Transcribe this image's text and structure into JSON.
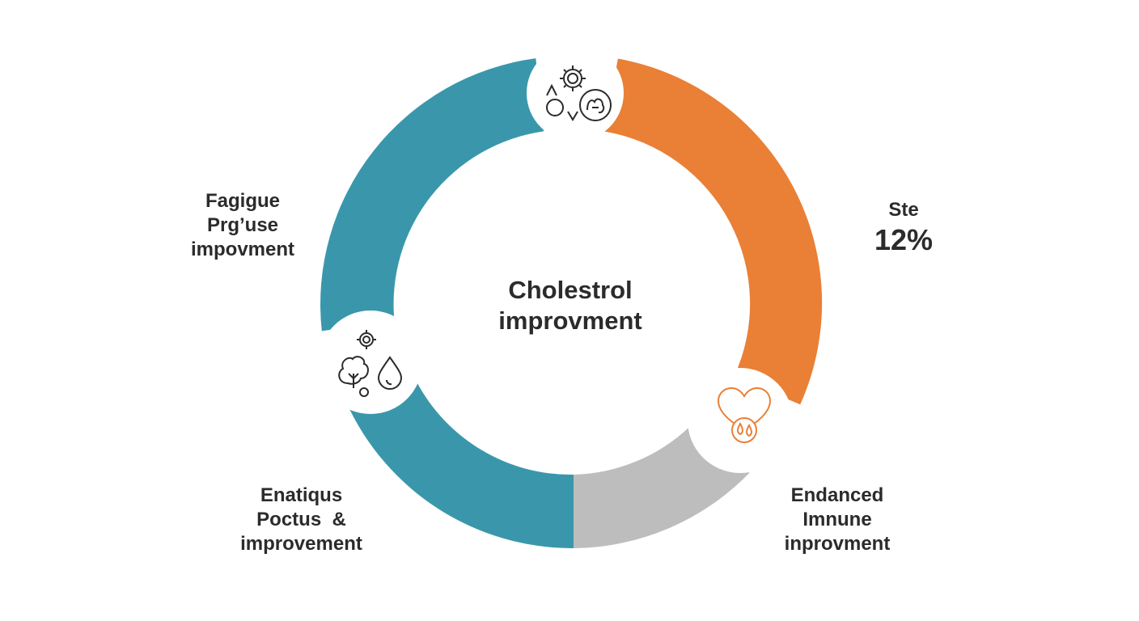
{
  "center": {
    "line1": "Cholestrol",
    "line2": "improvment"
  },
  "segments": [
    {
      "id": "top-left",
      "color": "#3a97ab",
      "lines": [
        "Fagigue",
        "Prg’use",
        "impovment"
      ]
    },
    {
      "id": "right",
      "color": "#e98036",
      "lines": [
        "Ste",
        "12%"
      ]
    },
    {
      "id": "bottom-right",
      "color": "#bdbdbd",
      "lines": [
        "Endanced",
        "Imnune",
        "inprovment"
      ]
    },
    {
      "id": "bottom-left",
      "color": "#3a97ab",
      "lines": [
        "Enatiqus",
        "Poctus  &",
        "improvement"
      ]
    }
  ],
  "icons": {
    "top": [
      "gear-icon",
      "arrows-icon",
      "circle-icon",
      "brain-icon"
    ],
    "left": [
      "gear-icon",
      "tree-icon",
      "water-drop-icon"
    ],
    "right": [
      "heart-drops-icon"
    ]
  },
  "colors": {
    "teal": "#3a97ab",
    "orange": "#e98036",
    "gray": "#bdbdbd",
    "text": "#2b2b2b"
  }
}
